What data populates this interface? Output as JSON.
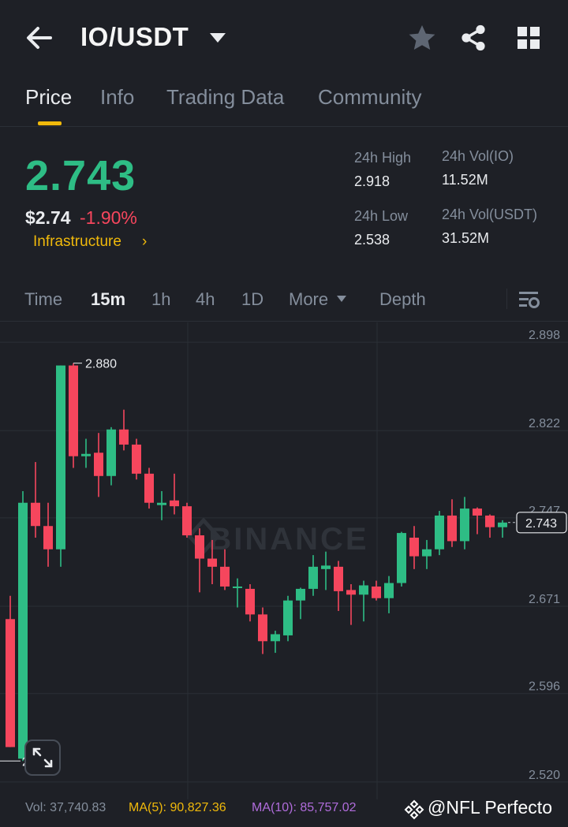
{
  "header": {
    "pair": "IO/USDT"
  },
  "tabs": [
    {
      "label": "Price",
      "active": true
    },
    {
      "label": "Info",
      "active": false
    },
    {
      "label": "Trading Data",
      "active": false
    },
    {
      "label": "Community",
      "active": false
    }
  ],
  "ticker": {
    "last_price": "2.743",
    "usd_price": "$2.74",
    "change_pct": "-1.90%",
    "sector": "Infrastructure",
    "high_label": "24h High",
    "high_value": "2.918",
    "low_label": "24h Low",
    "low_value": "2.538",
    "vol_base_label": "24h Vol(IO)",
    "vol_base_value": "11.52M",
    "vol_quote_label": "24h Vol(USDT)",
    "vol_quote_value": "31.52M"
  },
  "timeframes": {
    "time": "Time",
    "m15": "15m",
    "h1": "1h",
    "h4": "4h",
    "d1": "1D",
    "more": "More",
    "depth": "Depth"
  },
  "colors": {
    "up": "#2ebd85",
    "down": "#f6465d",
    "accent": "#f0b90b",
    "background": "#1e2026",
    "muted": "#848e9c"
  },
  "chart_data": {
    "type": "candlestick",
    "watermark": "BINANCE",
    "ylim": [
      2.505,
      2.915
    ],
    "y_ticks": [
      "2.898",
      "2.822",
      "2.747",
      "2.671",
      "2.596",
      "2.520"
    ],
    "max_label": "2.880",
    "min_label": "2.538",
    "last_price_label": "2.743",
    "candles": [
      {
        "o": 2.66,
        "h": 2.68,
        "l": 2.55,
        "c": 2.55
      },
      {
        "o": 2.54,
        "h": 2.77,
        "l": 2.538,
        "c": 2.76
      },
      {
        "o": 2.76,
        "h": 2.795,
        "l": 2.73,
        "c": 2.74
      },
      {
        "o": 2.74,
        "h": 2.76,
        "l": 2.705,
        "c": 2.72
      },
      {
        "o": 2.72,
        "h": 2.878,
        "l": 2.705,
        "c": 2.878
      },
      {
        "o": 2.878,
        "h": 2.88,
        "l": 2.79,
        "c": 2.8
      },
      {
        "o": 2.8,
        "h": 2.815,
        "l": 2.79,
        "c": 2.802
      },
      {
        "o": 2.803,
        "h": 2.82,
        "l": 2.765,
        "c": 2.783
      },
      {
        "o": 2.783,
        "h": 2.825,
        "l": 2.775,
        "c": 2.823
      },
      {
        "o": 2.823,
        "h": 2.84,
        "l": 2.805,
        "c": 2.81
      },
      {
        "o": 2.81,
        "h": 2.815,
        "l": 2.78,
        "c": 2.785
      },
      {
        "o": 2.785,
        "h": 2.79,
        "l": 2.755,
        "c": 2.76
      },
      {
        "o": 2.758,
        "h": 2.77,
        "l": 2.745,
        "c": 2.76
      },
      {
        "o": 2.762,
        "h": 2.785,
        "l": 2.75,
        "c": 2.757
      },
      {
        "o": 2.757,
        "h": 2.76,
        "l": 2.73,
        "c": 2.732
      },
      {
        "o": 2.732,
        "h": 2.738,
        "l": 2.683,
        "c": 2.712
      },
      {
        "o": 2.712,
        "h": 2.728,
        "l": 2.69,
        "c": 2.705
      },
      {
        "o": 2.705,
        "h": 2.72,
        "l": 2.685,
        "c": 2.688
      },
      {
        "o": 2.687,
        "h": 2.695,
        "l": 2.67,
        "c": 2.688
      },
      {
        "o": 2.686,
        "h": 2.69,
        "l": 2.658,
        "c": 2.664
      },
      {
        "o": 2.664,
        "h": 2.67,
        "l": 2.63,
        "c": 2.641
      },
      {
        "o": 2.641,
        "h": 2.65,
        "l": 2.631,
        "c": 2.647
      },
      {
        "o": 2.646,
        "h": 2.68,
        "l": 2.641,
        "c": 2.676
      },
      {
        "o": 2.676,
        "h": 2.687,
        "l": 2.66,
        "c": 2.686
      },
      {
        "o": 2.686,
        "h": 2.715,
        "l": 2.68,
        "c": 2.705
      },
      {
        "o": 2.703,
        "h": 2.718,
        "l": 2.685,
        "c": 2.706
      },
      {
        "o": 2.705,
        "h": 2.71,
        "l": 2.667,
        "c": 2.684
      },
      {
        "o": 2.685,
        "h": 2.69,
        "l": 2.655,
        "c": 2.681
      },
      {
        "o": 2.681,
        "h": 2.693,
        "l": 2.658,
        "c": 2.689
      },
      {
        "o": 2.688,
        "h": 2.693,
        "l": 2.676,
        "c": 2.678
      },
      {
        "o": 2.678,
        "h": 2.697,
        "l": 2.665,
        "c": 2.691
      },
      {
        "o": 2.691,
        "h": 2.735,
        "l": 2.688,
        "c": 2.734
      },
      {
        "o": 2.73,
        "h": 2.74,
        "l": 2.703,
        "c": 2.714
      },
      {
        "o": 2.714,
        "h": 2.728,
        "l": 2.703,
        "c": 2.72
      },
      {
        "o": 2.72,
        "h": 2.753,
        "l": 2.715,
        "c": 2.749
      },
      {
        "o": 2.749,
        "h": 2.763,
        "l": 2.722,
        "c": 2.727
      },
      {
        "o": 2.727,
        "h": 2.765,
        "l": 2.72,
        "c": 2.755
      },
      {
        "o": 2.755,
        "h": 2.756,
        "l": 2.733,
        "c": 2.749
      },
      {
        "o": 2.749,
        "h": 2.75,
        "l": 2.73,
        "c": 2.739
      },
      {
        "o": 2.739,
        "h": 2.745,
        "l": 2.73,
        "c": 2.743
      }
    ]
  },
  "bottom": {
    "vol": "Vol: 37,740.83",
    "ma5": "MA(5): 90,827.36",
    "ma10": "MA(10): 85,757.02",
    "watermark": "@NFL Perfecto"
  }
}
